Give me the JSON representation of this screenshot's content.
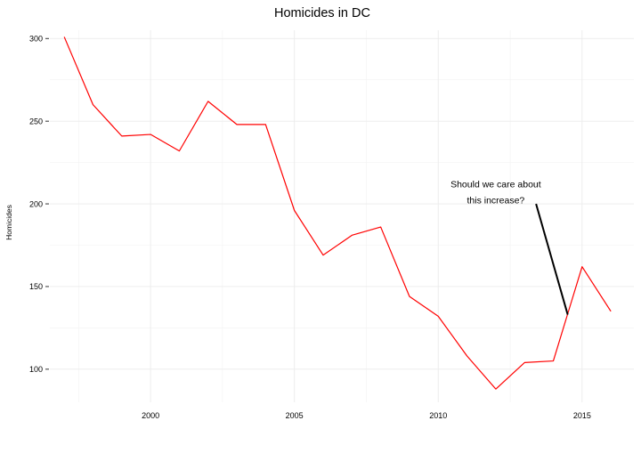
{
  "chart_data": {
    "type": "line",
    "title": "Homicides in DC",
    "xlabel": "",
    "ylabel": "Homicides",
    "xlim": [
      1996.5,
      2016.8
    ],
    "ylim": [
      80,
      305
    ],
    "x_ticks": [
      2000,
      2005,
      2010,
      2015
    ],
    "y_ticks": [
      100,
      150,
      200,
      250,
      300
    ],
    "grid": true,
    "legend": "none",
    "series": [
      {
        "color": "#ff0000",
        "x": [
          1997,
          1998,
          1999,
          2000,
          2001,
          2002,
          2003,
          2004,
          2005,
          2006,
          2007,
          2008,
          2009,
          2010,
          2011,
          2012,
          2013,
          2014,
          2015,
          2016
        ],
        "values": [
          301,
          260,
          241,
          242,
          232,
          262,
          248,
          248,
          196,
          169,
          181,
          186,
          144,
          132,
          108,
          88,
          104,
          105,
          162,
          135
        ]
      }
    ],
    "annotations": [
      {
        "lines": [
          "Should we care about",
          "this increase?"
        ],
        "text_x": 2012.0,
        "text_y": 210,
        "arrow_from": [
          2013.4,
          200
        ],
        "arrow_to": [
          2014.5,
          133
        ]
      }
    ]
  }
}
